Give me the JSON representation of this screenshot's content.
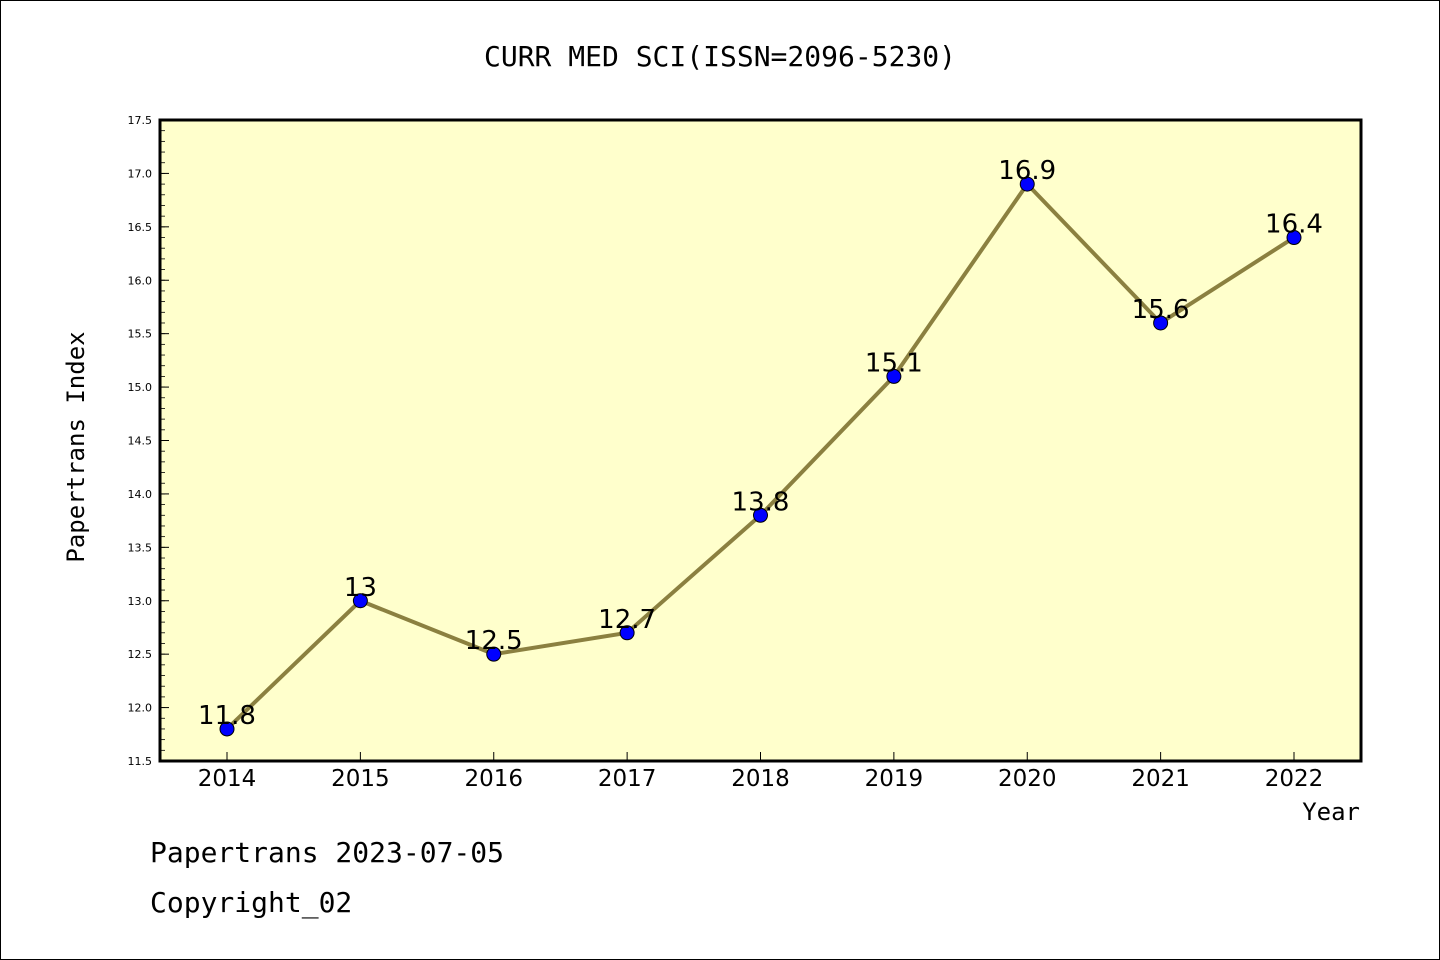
{
  "chart_data": {
    "type": "line",
    "title": "CURR MED SCI(ISSN=2096-5230)",
    "xlabel": "Year",
    "ylabel": "Papertrans Index",
    "categories": [
      "2014",
      "2015",
      "2016",
      "2017",
      "2018",
      "2019",
      "2020",
      "2021",
      "2022"
    ],
    "values": [
      11.8,
      13,
      12.5,
      12.7,
      13.8,
      15.1,
      16.9,
      15.6,
      16.4
    ],
    "data_labels": [
      "11.8",
      "13",
      "12.5",
      "12.7",
      "13.8",
      "15.1",
      "16.9",
      "15.6",
      "16.4"
    ],
    "ylim": [
      11.5,
      17.5
    ],
    "yticks": [
      "11.5",
      "12.0",
      "12.5",
      "13.0",
      "13.5",
      "14.0",
      "14.5",
      "15.0",
      "15.5",
      "16.0",
      "16.5",
      "17.0",
      "17.5"
    ],
    "grid": false,
    "legend": "none",
    "colors": {
      "plot_background": "#ffffcc",
      "line": "#8b8040",
      "marker": "#0000ff"
    }
  },
  "footer": {
    "line1": "Papertrans 2023-07-05",
    "line2": "Copyright_02"
  }
}
